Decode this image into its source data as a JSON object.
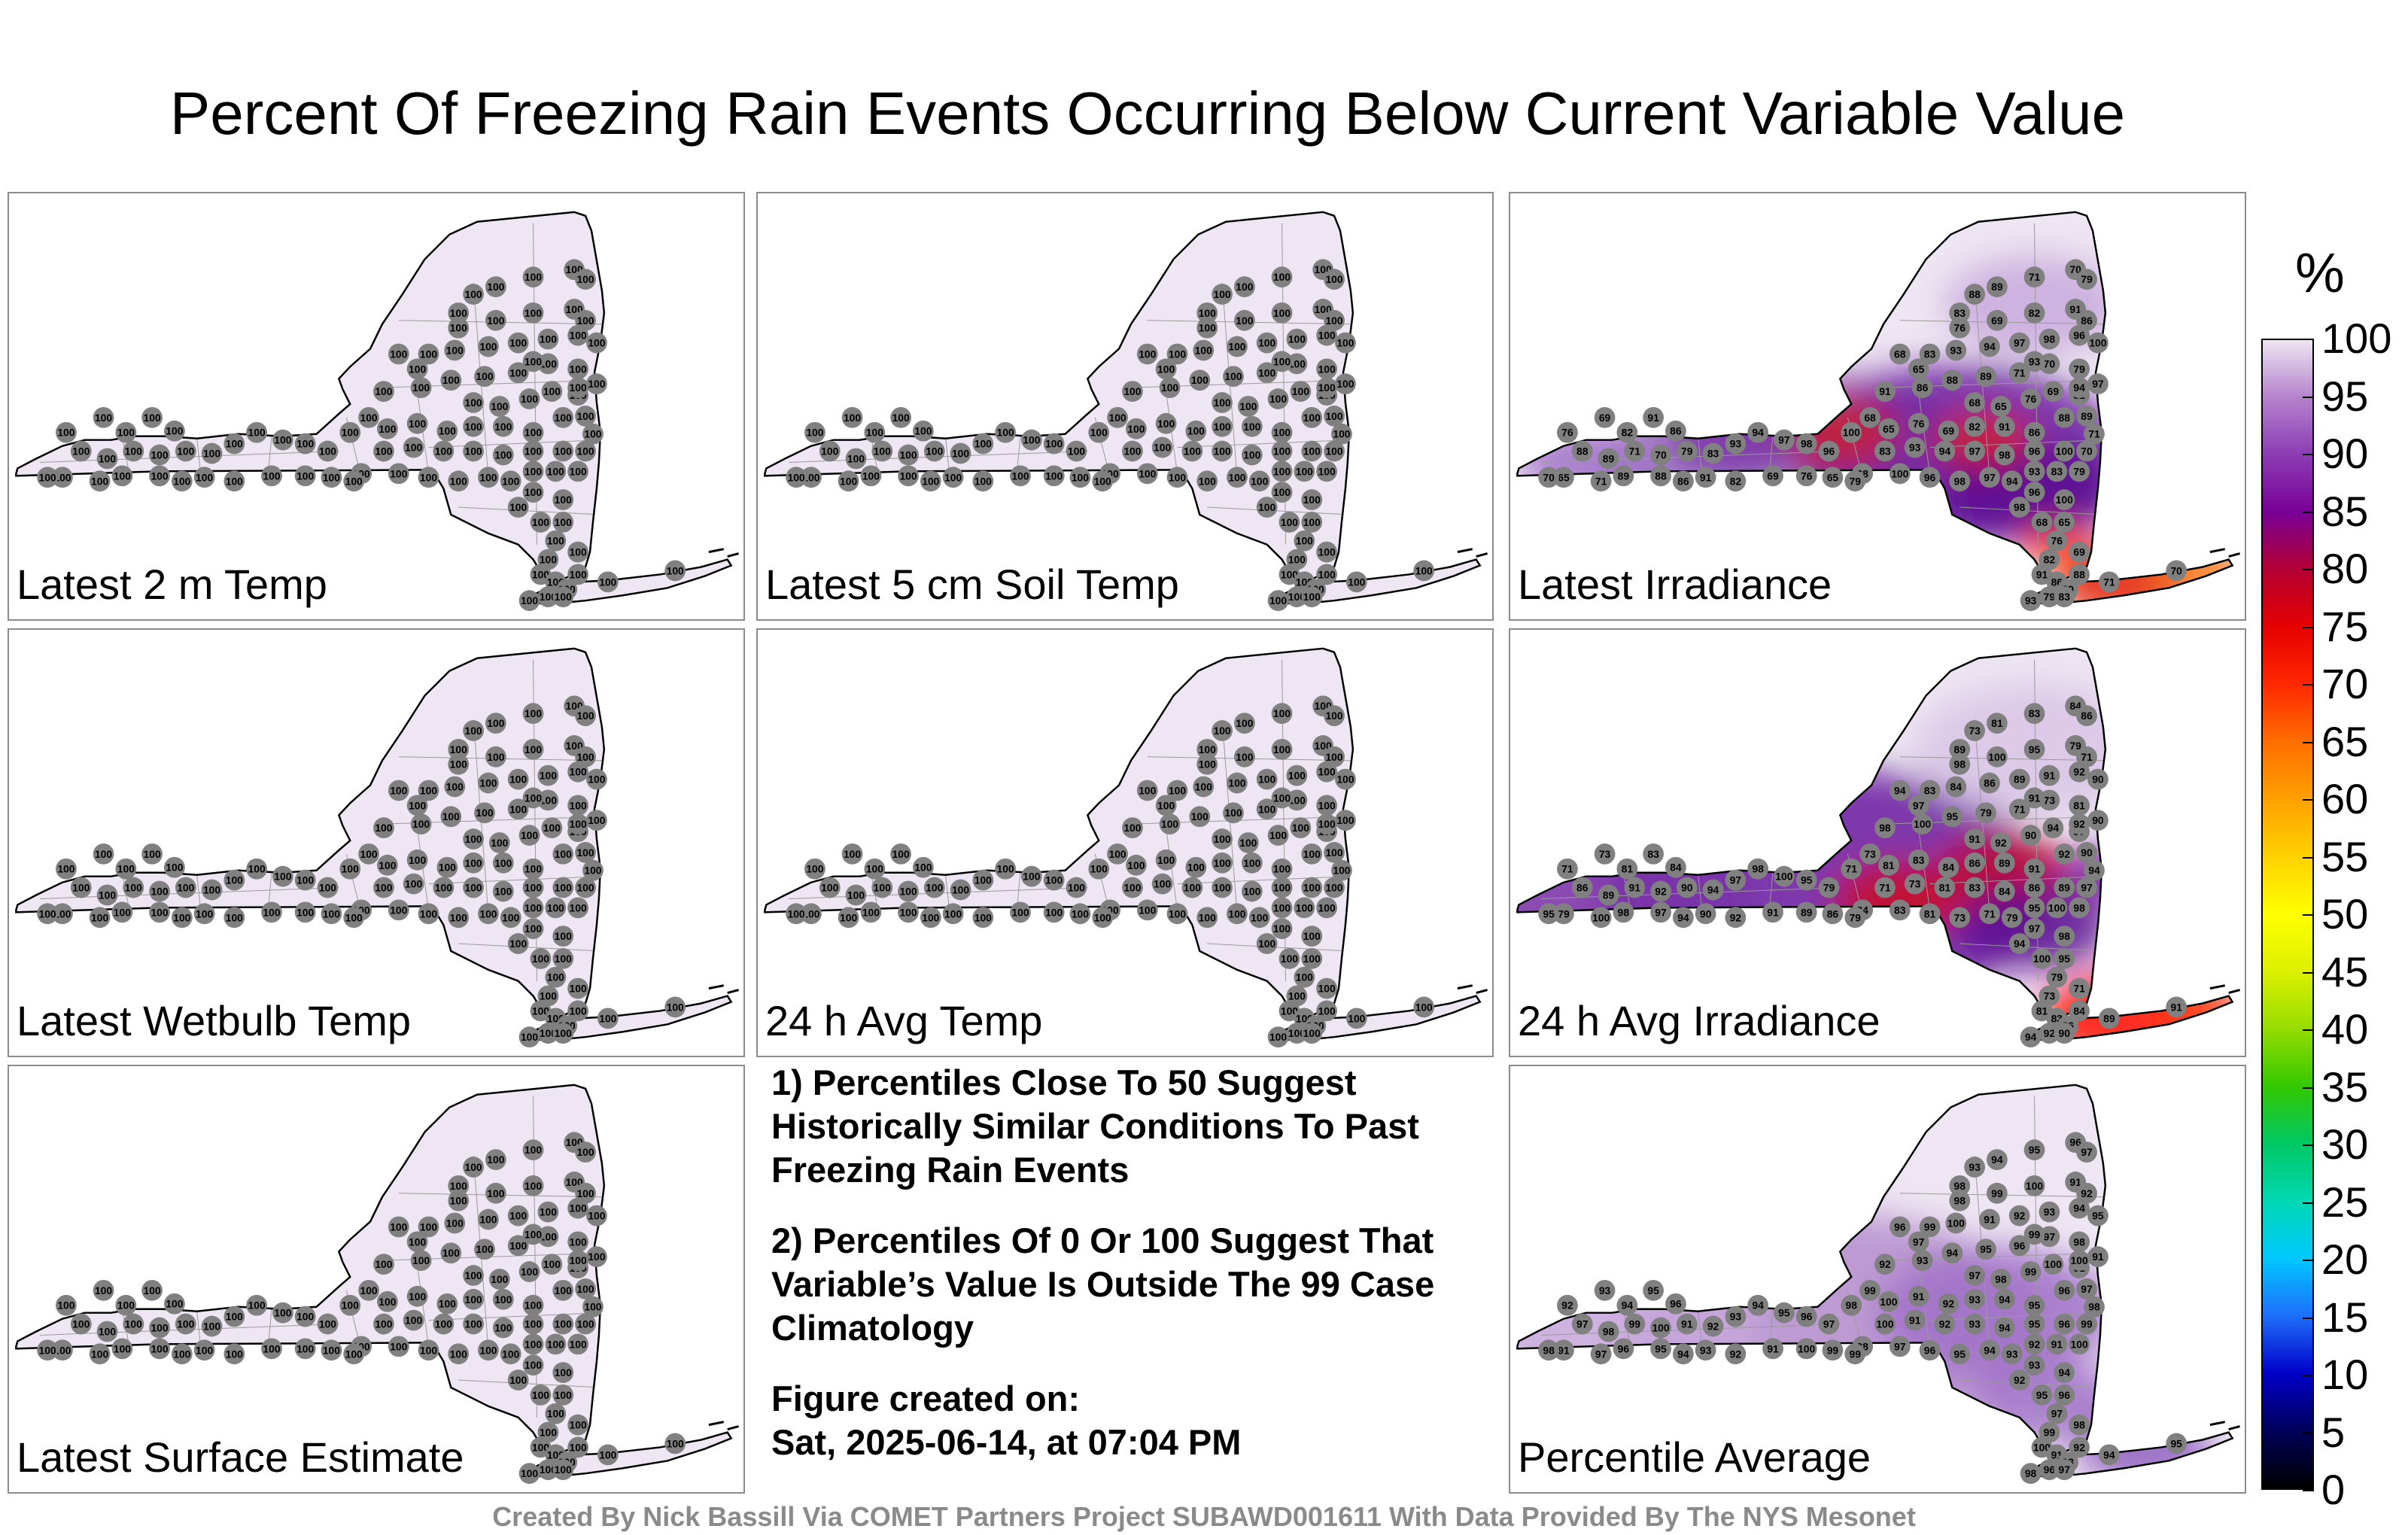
{
  "title": "Percent Of Freezing Rain Events Occurring Below Current Variable Value",
  "colors": {
    "uniform_fill": "#eee6f2",
    "dot": "#808080",
    "state_outline": "#000000",
    "county_line": "#9a9a9a"
  },
  "panels": [
    {
      "label": "Latest 2 m Temp",
      "mode": "uniform"
    },
    {
      "label": "Latest 5 cm Soil Temp",
      "mode": "uniform"
    },
    {
      "label": "Latest Irradiance",
      "mode": "irradiance"
    },
    {
      "label": "Latest Wetbulb Temp",
      "mode": "uniform"
    },
    {
      "label": "24 h Avg Temp",
      "mode": "uniform"
    },
    {
      "label": "24 h Avg Irradiance",
      "mode": "avg_irradiance"
    },
    {
      "label": "Latest Surface Estimate",
      "mode": "uniform"
    },
    {
      "label": "Percentile Average",
      "mode": "average"
    }
  ],
  "notes": {
    "note1": "1) Percentiles Close To 50 Suggest Historically Similar Conditions To Past Freezing Rain Events",
    "note2": "2) Percentiles Of 0 Or 100 Suggest That Variable’s Value Is Outside The 99 Case Climatology",
    "created_label": "Figure created on:",
    "created_date": "Sat, 2025-06-14, at 07:04 PM"
  },
  "chart_data": {
    "type": "heatmap",
    "title": "Percent Of Freezing Rain Events Occurring Below Current Variable Value",
    "colorbar_unit": "%",
    "colorbar_ticks": [
      0,
      5,
      10,
      15,
      20,
      25,
      30,
      35,
      40,
      45,
      50,
      55,
      60,
      65,
      70,
      75,
      80,
      85,
      90,
      95,
      100
    ],
    "colorbar_range": [
      0,
      100
    ],
    "colorbar_colors": [
      "#000000",
      "#00005a",
      "#0000c8",
      "#1e6efa",
      "#00c8ff",
      "#00d8b4",
      "#00c864",
      "#32c800",
      "#96dc00",
      "#dcf000",
      "#ffff00",
      "#ffd200",
      "#ffa000",
      "#ff6e00",
      "#ff2800",
      "#e60000",
      "#b40032",
      "#780096",
      "#8c3cb4",
      "#b482cc",
      "#eee6f2"
    ],
    "uniform_station_value": "100",
    "irradiance_values": [
      "65",
      "76",
      "69",
      "82",
      "91",
      "86",
      "88",
      "89",
      "71",
      "70",
      "79",
      "83",
      "93",
      "94",
      "97",
      "98",
      "96",
      "100",
      "68"
    ],
    "avg_irradiance_values": [
      "79",
      "71",
      "73",
      "81",
      "83",
      "84",
      "86",
      "89",
      "91",
      "92",
      "90",
      "94",
      "97",
      "98",
      "100",
      "95"
    ],
    "average_values": [
      "91",
      "92",
      "93",
      "94",
      "95",
      "96",
      "97",
      "98",
      "99",
      "100"
    ]
  },
  "footer": "Created By Nick Bassill Via COMET Partners Project SUBAWD001611 With Data Provided By The NYS Mesonet"
}
